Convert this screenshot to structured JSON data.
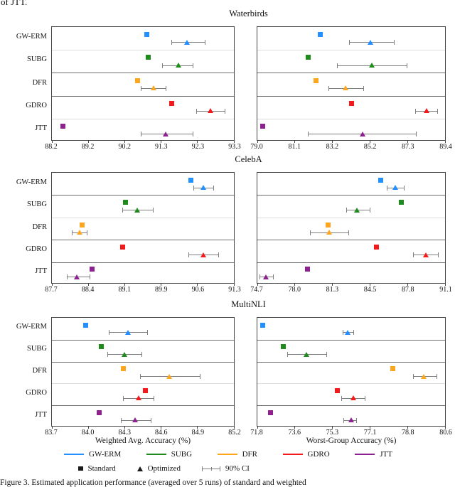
{
  "page_text": {
    "top_fragment": "of JTT.",
    "caption": "Figure 3. Estimated application performance (averaged over 5 runs) of standard and weighted"
  },
  "axis_labels": {
    "left": "Weighted Avg. Accuracy (%)",
    "right": "Worst-Group Accuracy (%)"
  },
  "legend": {
    "methods": [
      {
        "label": "GW-ERM",
        "color": "#2490FF"
      },
      {
        "label": "SUBG",
        "color": "#1F8B1F"
      },
      {
        "label": "DFR",
        "color": "#FFA51E"
      },
      {
        "label": "GDRO",
        "color": "#F41A1C"
      },
      {
        "label": "JTT",
        "color": "#8E2190"
      }
    ],
    "marker_entries": [
      {
        "label": "Standard",
        "glyph": "square"
      },
      {
        "label": "Optimized",
        "glyph": "triangle"
      },
      {
        "label": "90% CI",
        "glyph": "errorbar"
      }
    ],
    "errorbar_color": "#7f7f7f"
  },
  "chart_data": [
    {
      "type": "scatter",
      "title": "Waterbirds",
      "separators": [
        "light",
        "dark",
        "dark",
        "light"
      ],
      "subplots": [
        {
          "side": "weighted-avg",
          "xlim": [
            88.2,
            93.3
          ],
          "ticks": [
            "88.2",
            "89.2",
            "90.2",
            "91.3",
            "92.3",
            "93.3"
          ],
          "rows": [
            {
              "method": "GW-ERM",
              "standard": 90.85,
              "optimized": 92.0,
              "ci": [
                91.55,
                92.5
              ]
            },
            {
              "method": "SUBG",
              "standard": 90.9,
              "optimized": 91.75,
              "ci": [
                91.3,
                92.15
              ]
            },
            {
              "method": "DFR",
              "standard": 90.6,
              "optimized": 91.05,
              "ci": [
                90.7,
                91.4
              ]
            },
            {
              "method": "GDRO",
              "standard": 91.55,
              "optimized": 92.65,
              "ci": [
                92.25,
                93.05
              ]
            },
            {
              "method": "JTT",
              "standard": 88.5,
              "optimized": 91.4,
              "ci": [
                90.7,
                92.15
              ]
            }
          ]
        },
        {
          "side": "worst-group",
          "xlim": [
            79.0,
            89.4
          ],
          "ticks": [
            "79.0",
            "81.1",
            "83.2",
            "85.2",
            "87.3",
            "89.4"
          ],
          "rows": [
            {
              "method": "GW-ERM",
              "standard": 82.5,
              "optimized": 85.3,
              "ci": [
                84.1,
                86.6
              ]
            },
            {
              "method": "SUBG",
              "standard": 81.8,
              "optimized": 85.35,
              "ci": [
                83.45,
                87.3
              ]
            },
            {
              "method": "DFR",
              "standard": 82.25,
              "optimized": 83.9,
              "ci": [
                82.95,
                84.9
              ]
            },
            {
              "method": "GDRO",
              "standard": 84.2,
              "optimized": 88.4,
              "ci": [
                87.75,
                89.0
              ]
            },
            {
              "method": "JTT",
              "standard": 79.3,
              "optimized": 84.85,
              "ci": [
                81.8,
                87.8
              ]
            }
          ]
        }
      ]
    },
    {
      "type": "scatter",
      "title": "CelebA",
      "separators": [
        "dark",
        "light",
        "dark",
        "dark"
      ],
      "subplots": [
        {
          "side": "weighted-avg",
          "xlim": [
            87.7,
            91.3
          ],
          "ticks": [
            "87.7",
            "88.4",
            "89.1",
            "89.9",
            "90.6",
            "91.3"
          ],
          "rows": [
            {
              "method": "GW-ERM",
              "standard": 90.45,
              "optimized": 90.7,
              "ci": [
                90.5,
                90.9
              ]
            },
            {
              "method": "SUBG",
              "standard": 89.15,
              "optimized": 89.4,
              "ci": [
                89.1,
                89.7
              ]
            },
            {
              "method": "DFR",
              "standard": 88.3,
              "optimized": 88.25,
              "ci": [
                88.1,
                88.4
              ]
            },
            {
              "method": "GDRO",
              "standard": 89.1,
              "optimized": 90.7,
              "ci": [
                90.4,
                91.0
              ]
            },
            {
              "method": "JTT",
              "standard": 88.5,
              "optimized": 88.2,
              "ci": [
                88.0,
                88.45
              ]
            }
          ]
        },
        {
          "side": "worst-group",
          "xlim": [
            74.7,
            91.1
          ],
          "ticks": [
            "74.7",
            "78.0",
            "81.3",
            "84.5",
            "87.8",
            "91.1"
          ],
          "rows": [
            {
              "method": "GW-ERM",
              "standard": 85.5,
              "optimized": 86.8,
              "ci": [
                86.05,
                87.5
              ]
            },
            {
              "method": "SUBG",
              "standard": 87.3,
              "optimized": 83.45,
              "ci": [
                82.5,
                84.55
              ]
            },
            {
              "method": "DFR",
              "standard": 80.85,
              "optimized": 81.0,
              "ci": [
                79.3,
                82.7
              ]
            },
            {
              "method": "GDRO",
              "standard": 85.1,
              "optimized": 89.45,
              "ci": [
                88.35,
                90.5
              ]
            },
            {
              "method": "JTT",
              "standard": 79.1,
              "optimized": 75.45,
              "ci": [
                74.9,
                76.1
              ]
            }
          ]
        }
      ]
    },
    {
      "type": "scatter",
      "title": "MultiNLI",
      "separators": [
        "dark",
        "dark",
        "light",
        "dark"
      ],
      "subplots": [
        {
          "side": "weighted-avg",
          "xlim": [
            83.7,
            85.2
          ],
          "ticks": [
            "83.7",
            "84.0",
            "84.3",
            "84.6",
            "84.9",
            "85.2"
          ],
          "rows": [
            {
              "method": "GW-ERM",
              "standard": 83.98,
              "optimized": 84.33,
              "ci": [
                84.17,
                84.49
              ]
            },
            {
              "method": "SUBG",
              "standard": 84.11,
              "optimized": 84.3,
              "ci": [
                84.16,
                84.44
              ]
            },
            {
              "method": "DFR",
              "standard": 84.29,
              "optimized": 84.67,
              "ci": [
                84.43,
                84.92
              ]
            },
            {
              "method": "GDRO",
              "standard": 84.47,
              "optimized": 84.42,
              "ci": [
                84.29,
                84.54
              ]
            },
            {
              "method": "JTT",
              "standard": 84.09,
              "optimized": 84.39,
              "ci": [
                84.27,
                84.52
              ]
            }
          ]
        },
        {
          "side": "worst-group",
          "xlim": [
            71.8,
            80.6
          ],
          "ticks": [
            "71.8",
            "73.6",
            "75.3",
            "77.1",
            "78.8",
            "80.6"
          ],
          "rows": [
            {
              "method": "GW-ERM",
              "standard": 72.05,
              "optimized": 76.05,
              "ci": [
                75.8,
                76.3
              ]
            },
            {
              "method": "SUBG",
              "standard": 73.0,
              "optimized": 74.1,
              "ci": [
                73.2,
                75.05
              ]
            },
            {
              "method": "DFR",
              "standard": 78.15,
              "optimized": 79.6,
              "ci": [
                79.1,
                80.2
              ]
            },
            {
              "method": "GDRO",
              "standard": 75.55,
              "optimized": 76.3,
              "ci": [
                75.75,
                76.85
              ]
            },
            {
              "method": "JTT",
              "standard": 72.4,
              "optimized": 76.2,
              "ci": [
                75.85,
                76.45
              ]
            }
          ]
        }
      ]
    }
  ]
}
